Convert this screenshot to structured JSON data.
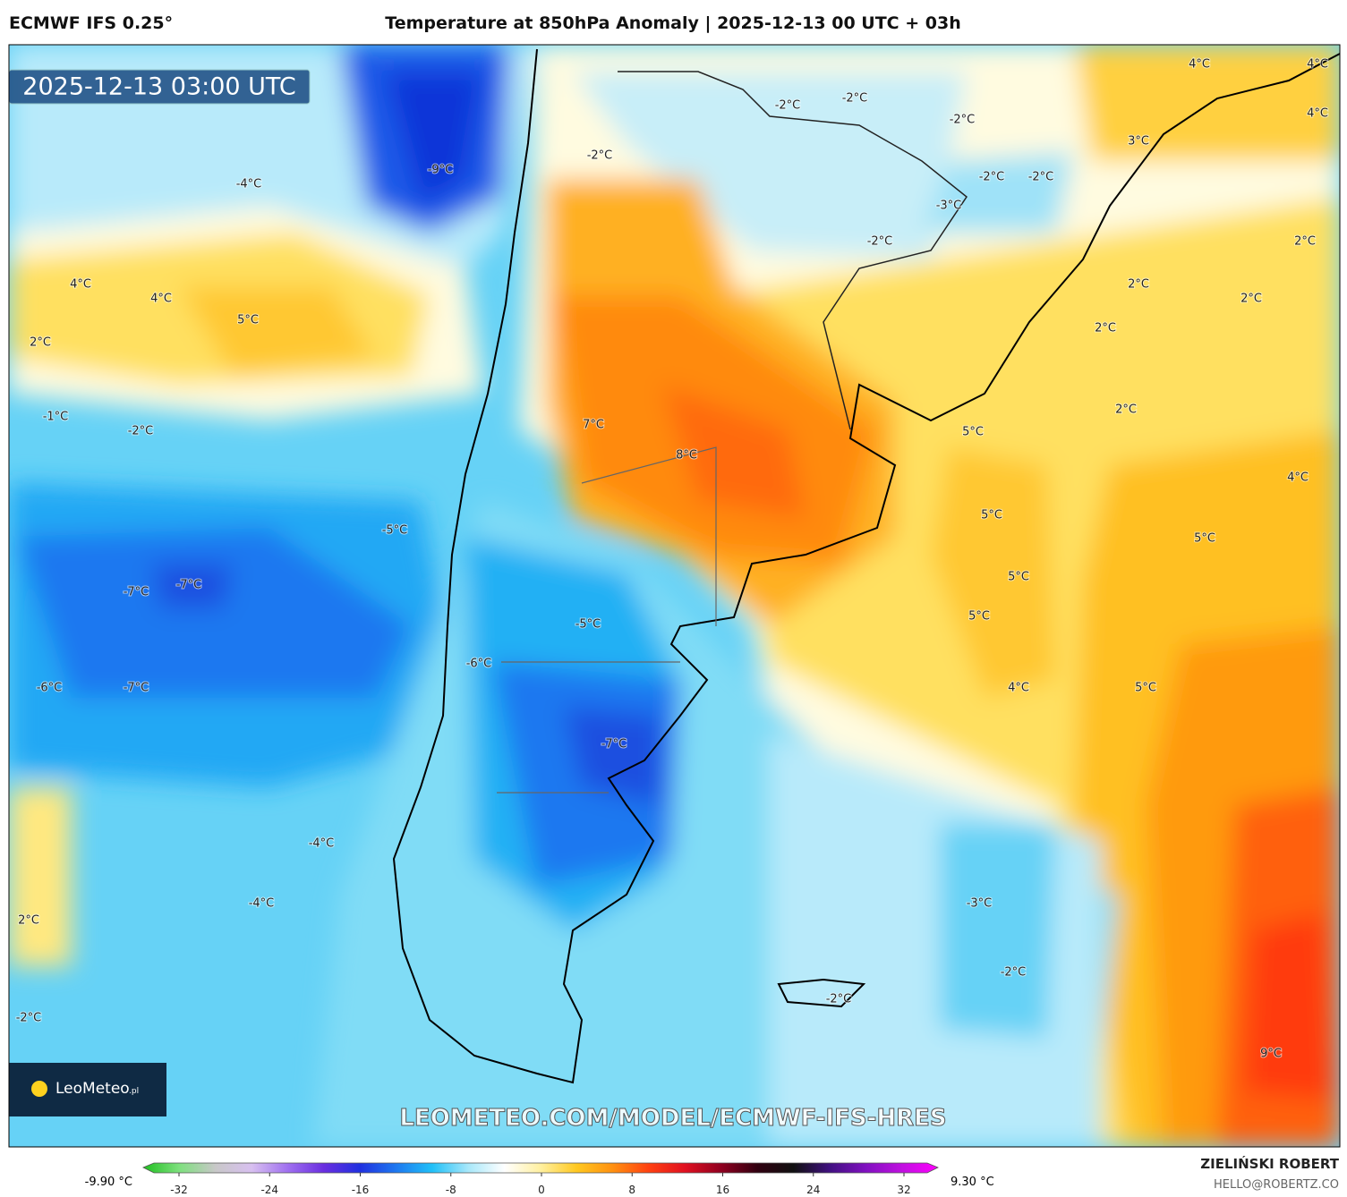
{
  "header": {
    "model": "ECMWF IFS 0.25°",
    "title": "Temperature at 850hPa Anomaly | 2025-12-13 00 UTC + 03h"
  },
  "map": {
    "valid_time": "2025-12-13 03:00 UTC",
    "watermark": "LEOMETEO.COM/MODEL/ECMWF-IFS-HRES",
    "logo": {
      "name": "LeoMeteo",
      "suffix": ".pl"
    },
    "contour_labels": [
      "4°C",
      "4°C",
      "4°C",
      "3°C",
      "-2°C",
      "-2°C",
      "-2°C",
      "-2°C",
      "-9°C",
      "-4°C",
      "-2°C",
      "-2°C",
      "-3°C",
      "-2°C",
      "2°C",
      "4°C",
      "4°C",
      "2°C",
      "2°C",
      "5°C",
      "2°C",
      "2°C",
      "2°C",
      "-1°C",
      "-2°C",
      "7°C",
      "5°C",
      "8°C",
      "4°C",
      "5°C",
      "-5°C",
      "5°C",
      "-7°C",
      "-7°C",
      "5°C",
      "5°C",
      "-5°C",
      "-6°C",
      "-6°C",
      "-7°C",
      "4°C",
      "5°C",
      "-7°C",
      "-4°C",
      "-4°C",
      "-3°C",
      "2°C",
      "-2°C",
      "-2°C",
      "-2°C",
      "9°C"
    ]
  },
  "colorbar": {
    "min_label": "-9.90 °C",
    "max_label": "9.30 °C",
    "range": [
      -32,
      32
    ],
    "ticks": [
      -32,
      -24,
      -16,
      -8,
      0,
      8,
      16,
      24,
      32
    ],
    "colors": [
      "#20c020",
      "#7ee07e",
      "#c8c8c8",
      "#d8c0f0",
      "#a070f0",
      "#6a2ee0",
      "#2030e0",
      "#1e78f0",
      "#20c0f8",
      "#a8e8fa",
      "#ffffff",
      "#fff0a0",
      "#ffc820",
      "#ff9010",
      "#ff4010",
      "#e01020",
      "#900020",
      "#300010",
      "#101010",
      "#401080",
      "#8010c0",
      "#c010e0",
      "#ff00ff"
    ]
  },
  "footer": {
    "author": "ZIELIŃSKI ROBERT",
    "email": "HELLO@ROBERTZ.CO"
  }
}
